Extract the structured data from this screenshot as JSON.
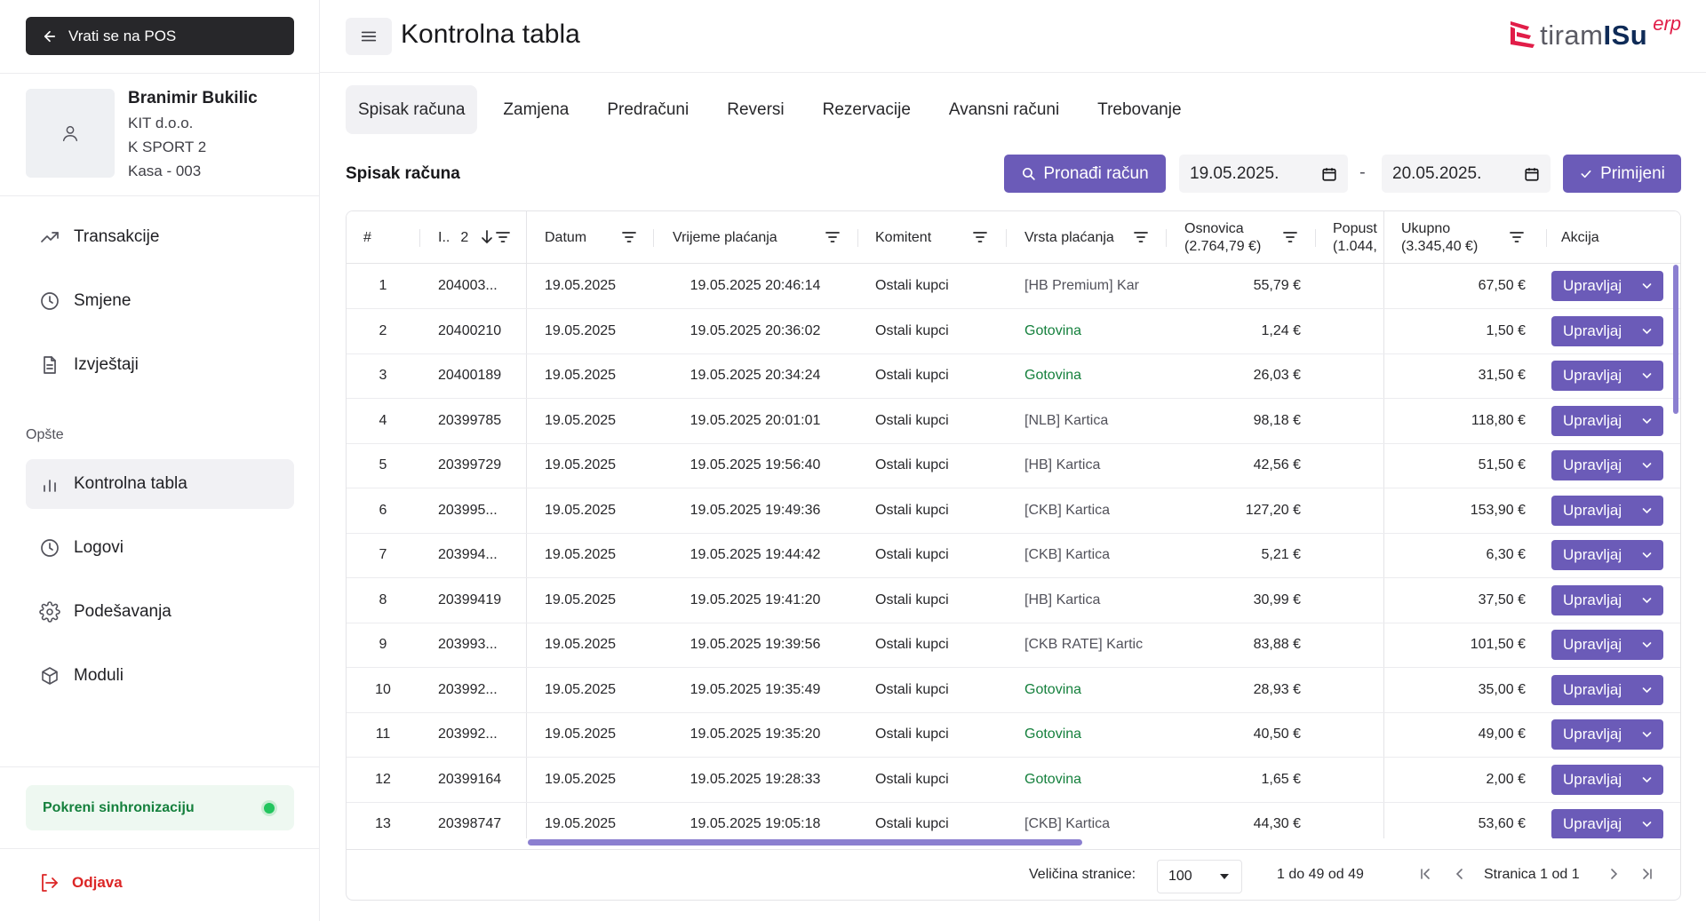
{
  "sidebar": {
    "back_label": "Vrati se na POS",
    "user": {
      "name": "Branimir Bukilic",
      "company": "KIT d.o.o.",
      "store": "K SPORT 2",
      "register": "Kasa - 003"
    },
    "nav": [
      {
        "label": "Transakcije",
        "icon": "trending-up-icon"
      },
      {
        "label": "Smjene",
        "icon": "clock-icon"
      },
      {
        "label": "Izvještaji",
        "icon": "file-text-icon"
      }
    ],
    "section_label": "Opšte",
    "nav2": [
      {
        "label": "Kontrolna tabla",
        "icon": "bar-chart-icon",
        "active": true
      },
      {
        "label": "Logovi",
        "icon": "clock-icon"
      },
      {
        "label": "Podešavanja",
        "icon": "gear-icon"
      },
      {
        "label": "Moduli",
        "icon": "box-icon"
      }
    ],
    "sync_label": "Pokreni sinhronizaciju",
    "logout_label": "Odjava"
  },
  "header": {
    "title": "Kontrolna tabla",
    "logo": {
      "part1": "tiram",
      "part2": "ISu",
      "suffix": "erp"
    }
  },
  "tabs": [
    "Spisak računa",
    "Zamjena",
    "Predračuni",
    "Reversi",
    "Rezervacije",
    "Avansni računi",
    "Trebovanje"
  ],
  "toolbar": {
    "list_title": "Spisak računa",
    "find_label": "Pronađi račun",
    "date_from": "19.05.2025.",
    "date_to": "20.05.2025.",
    "dash": "-",
    "apply_label": "Primijeni"
  },
  "table": {
    "headers": {
      "num": "#",
      "id": "I..",
      "id_sort": "2",
      "date": "Datum",
      "time": "Vrijeme plaćanja",
      "client": "Komitent",
      "payment": "Vrsta plaćanja",
      "base_l1": "Osnovica",
      "base_l2": "(2.764,79 €)",
      "disc_l1": "Popust",
      "disc_l2": "(1.044,",
      "total_l1": "Ukupno",
      "total_l2": "(3.345,40 €)",
      "action": "Akcija"
    },
    "action_label": "Upravljaj",
    "rows": [
      {
        "n": "1",
        "id": "204003...",
        "date": "19.05.2025",
        "time": "19.05.2025 20:46:14",
        "client": "Ostali kupci",
        "payment": "[HB Premium] Kar",
        "cash": false,
        "base": "55,79 €",
        "total": "67,50 €"
      },
      {
        "n": "2",
        "id": "20400210",
        "date": "19.05.2025",
        "time": "19.05.2025 20:36:02",
        "client": "Ostali kupci",
        "payment": "Gotovina",
        "cash": true,
        "base": "1,24 €",
        "total": "1,50 €"
      },
      {
        "n": "3",
        "id": "20400189",
        "date": "19.05.2025",
        "time": "19.05.2025 20:34:24",
        "client": "Ostali kupci",
        "payment": "Gotovina",
        "cash": true,
        "base": "26,03 €",
        "total": "31,50 €"
      },
      {
        "n": "4",
        "id": "20399785",
        "date": "19.05.2025",
        "time": "19.05.2025 20:01:01",
        "client": "Ostali kupci",
        "payment": "[NLB] Kartica",
        "cash": false,
        "base": "98,18 €",
        "total": "118,80 €"
      },
      {
        "n": "5",
        "id": "20399729",
        "date": "19.05.2025",
        "time": "19.05.2025 19:56:40",
        "client": "Ostali kupci",
        "payment": "[HB] Kartica",
        "cash": false,
        "base": "42,56 €",
        "total": "51,50 €"
      },
      {
        "n": "6",
        "id": "203995...",
        "date": "19.05.2025",
        "time": "19.05.2025 19:49:36",
        "client": "Ostali kupci",
        "payment": "[CKB] Kartica",
        "cash": false,
        "base": "127,20 €",
        "total": "153,90 €"
      },
      {
        "n": "7",
        "id": "203994...",
        "date": "19.05.2025",
        "time": "19.05.2025 19:44:42",
        "client": "Ostali kupci",
        "payment": "[CKB] Kartica",
        "cash": false,
        "base": "5,21 €",
        "total": "6,30 €"
      },
      {
        "n": "8",
        "id": "20399419",
        "date": "19.05.2025",
        "time": "19.05.2025 19:41:20",
        "client": "Ostali kupci",
        "payment": "[HB] Kartica",
        "cash": false,
        "base": "30,99 €",
        "total": "37,50 €"
      },
      {
        "n": "9",
        "id": "203993...",
        "date": "19.05.2025",
        "time": "19.05.2025 19:39:56",
        "client": "Ostali kupci",
        "payment": "[CKB RATE] Kartic",
        "cash": false,
        "base": "83,88 €",
        "total": "101,50 €"
      },
      {
        "n": "10",
        "id": "203992...",
        "date": "19.05.2025",
        "time": "19.05.2025 19:35:49",
        "client": "Ostali kupci",
        "payment": "Gotovina",
        "cash": true,
        "base": "28,93 €",
        "total": "35,00 €"
      },
      {
        "n": "11",
        "id": "203992...",
        "date": "19.05.2025",
        "time": "19.05.2025 19:35:20",
        "client": "Ostali kupci",
        "payment": "Gotovina",
        "cash": true,
        "base": "40,50 €",
        "total": "49,00 €"
      },
      {
        "n": "12",
        "id": "20399164",
        "date": "19.05.2025",
        "time": "19.05.2025 19:28:33",
        "client": "Ostali kupci",
        "payment": "Gotovina",
        "cash": true,
        "base": "1,65 €",
        "total": "2,00 €"
      },
      {
        "n": "13",
        "id": "20398747",
        "date": "19.05.2025",
        "time": "19.05.2025 19:05:18",
        "client": "Ostali kupci",
        "payment": "[CKB] Kartica",
        "cash": false,
        "base": "44,30 €",
        "total": "53,60 €"
      }
    ],
    "footer": {
      "page_size_label": "Veličina stranice:",
      "page_size": "100",
      "range": "1 do 49 od 49",
      "page": "Stranica 1 od 1"
    }
  },
  "colors": {
    "accent": "#6b5bb8",
    "cash": "#15803d",
    "danger": "#dc2626"
  }
}
